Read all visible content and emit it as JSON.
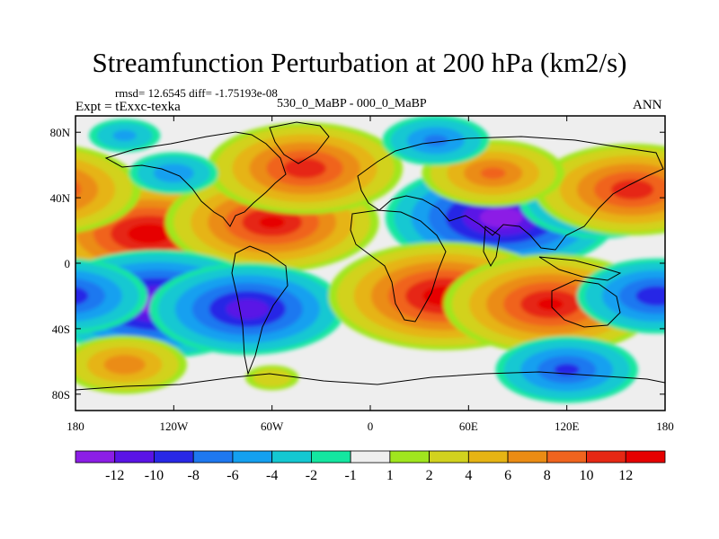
{
  "colors": {
    "frame": "#000000",
    "land": "#eeeeee",
    "coast": "#000000"
  },
  "chart_data": {
    "type": "heatmap",
    "title": "Streamfunction Perturbation at 200 hPa (km2/s)",
    "stats_text": "rmsd= 12.6545 diff= -1.75193e-08",
    "left_label": "Expt = tExxc-texka",
    "center_label": "530_0_MaBP - 000_0_MaBP",
    "right_label": "ANN",
    "x_axis": {
      "range": [
        -180,
        180
      ],
      "ticks": [
        -180,
        -120,
        -60,
        0,
        60,
        120,
        180
      ],
      "tick_labels": [
        "180",
        "120W",
        "60W",
        "0",
        "60E",
        "120E",
        "180"
      ]
    },
    "y_axis": {
      "range": [
        -90,
        90
      ],
      "ticks": [
        80,
        40,
        0,
        -40,
        -80
      ],
      "tick_labels": [
        "80N",
        "40N",
        "0",
        "40S",
        "80S"
      ]
    },
    "colorbar": {
      "levels": [
        -12,
        -10,
        -8,
        -6,
        -4,
        -2,
        -1,
        1,
        2,
        4,
        6,
        8,
        10,
        12
      ],
      "labels": [
        "-12",
        "-10",
        "-8",
        "-6",
        "-4",
        "-2",
        "-1",
        "1",
        "2",
        "4",
        "6",
        "8",
        "10",
        "12"
      ],
      "colors": [
        "#8c1ee6",
        "#5a14e6",
        "#2828e6",
        "#1e78f0",
        "#14a0f0",
        "#14c8d2",
        "#14e6a0",
        "#eeeeee",
        "#a0e61e",
        "#d2d21e",
        "#e6b414",
        "#eb8c14",
        "#f0641e",
        "#e62814",
        "#e60000"
      ]
    },
    "features": [
      {
        "lon": -135,
        "lat": 18,
        "value": 13
      },
      {
        "lon": -60,
        "lat": 25,
        "value": 12
      },
      {
        "lon": -130,
        "lat": -25,
        "value": -13
      },
      {
        "lon": -75,
        "lat": -28,
        "value": -11
      },
      {
        "lon": 80,
        "lat": 28,
        "value": -13
      },
      {
        "lon": 140,
        "lat": 38,
        "value": -9
      },
      {
        "lon": 45,
        "lat": -20,
        "value": 13
      },
      {
        "lon": 110,
        "lat": -25,
        "value": 12
      },
      {
        "lon": -40,
        "lat": 58,
        "value": 11
      },
      {
        "lon": 160,
        "lat": 45,
        "value": 11
      },
      {
        "lon": 75,
        "lat": 55,
        "value": 8
      },
      {
        "lon": -150,
        "lat": 78,
        "value": -4
      },
      {
        "lon": -120,
        "lat": 55,
        "value": -5
      },
      {
        "lon": 40,
        "lat": 75,
        "value": -6
      },
      {
        "lon": 175,
        "lat": -20,
        "value": -9
      },
      {
        "lon": 120,
        "lat": -65,
        "value": -8
      },
      {
        "lon": -150,
        "lat": -62,
        "value": 7
      },
      {
        "lon": -60,
        "lat": -70,
        "value": 3
      }
    ]
  }
}
